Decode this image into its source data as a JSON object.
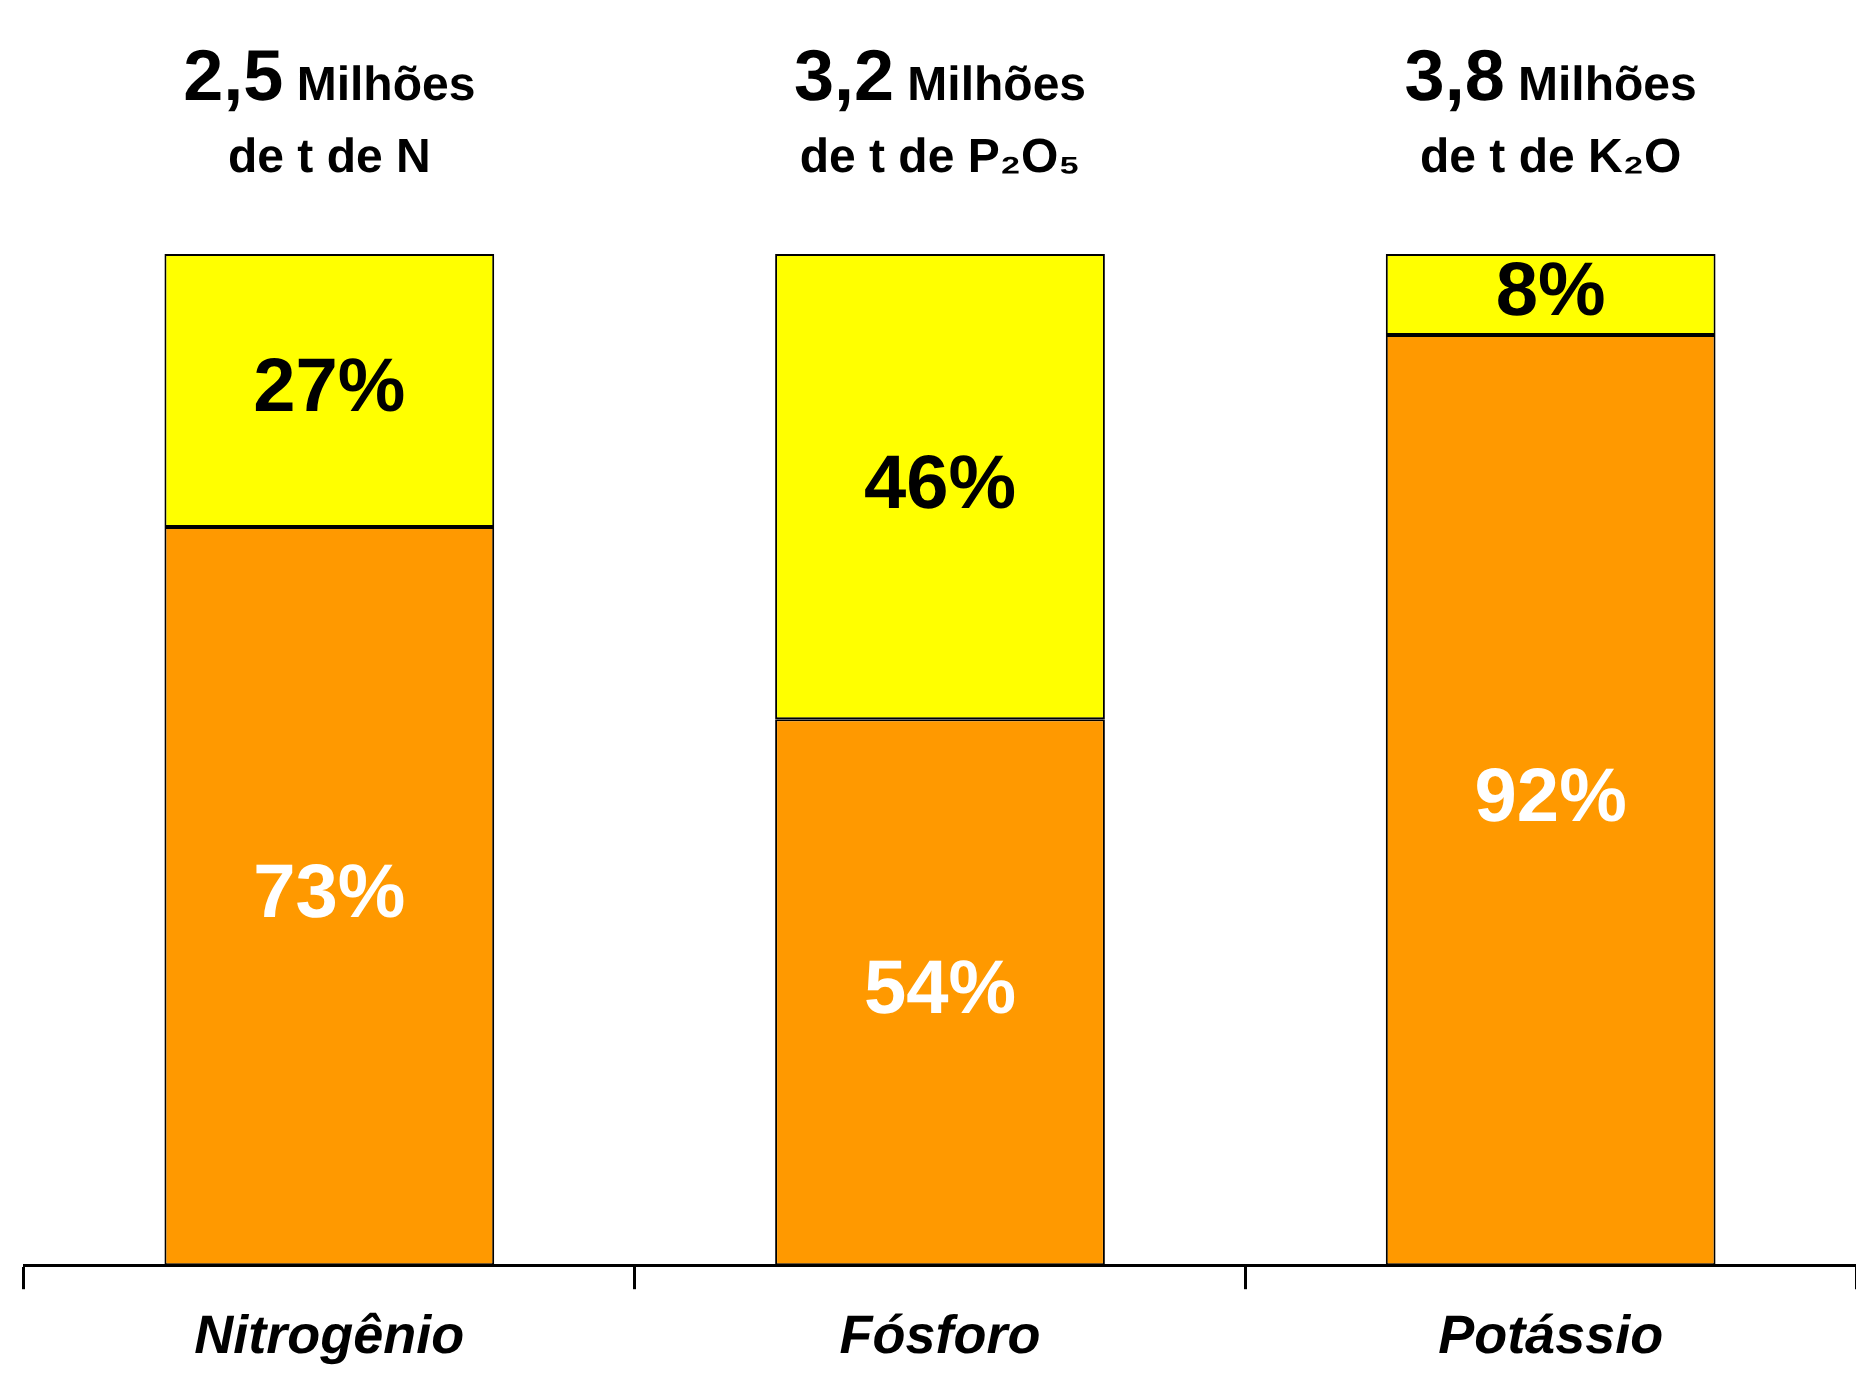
{
  "chart_data": {
    "type": "bar",
    "stacked": true,
    "categories": [
      "Nitrogênio",
      "Fósforo",
      "Potássio"
    ],
    "series": [
      {
        "color": "#ff9900",
        "values": [
          73,
          54,
          92
        ],
        "value_labels": [
          "73%",
          "54%",
          "92%"
        ]
      },
      {
        "color": "#ffff00",
        "values": [
          27,
          46,
          8
        ],
        "value_labels": [
          "27%",
          "46%",
          "8%"
        ]
      }
    ],
    "annotations": [
      "2,5 Milhões\nde t de N",
      "3,2 Milhões\nde t de P₂O₅",
      "3,8 Milhões\nde t de K₂O"
    ],
    "grid": false,
    "legend": false
  }
}
